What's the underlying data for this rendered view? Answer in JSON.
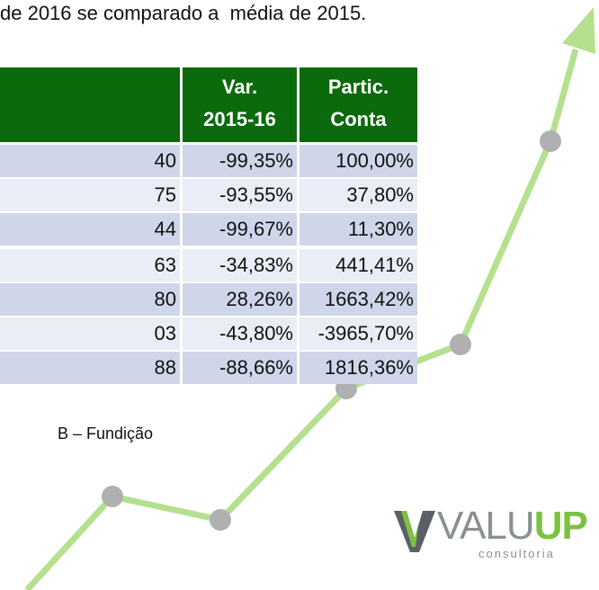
{
  "intro_text": "de 2016 se comparado a  média de 2015.",
  "table": {
    "header": [
      "",
      "Var.\n2015-16",
      "Partic.\nConta"
    ],
    "rows": [
      [
        "40",
        "-99,35%",
        "100,00%"
      ],
      [
        "75",
        "-93,55%",
        "37,80%"
      ],
      [
        "44",
        "-99,67%",
        "11,30%"
      ],
      [
        "63",
        "-34,83%",
        "441,41%"
      ],
      [
        "80",
        "28,26%",
        "1663,42%"
      ],
      [
        "03",
        "-43,80%",
        "-3965,70%"
      ],
      [
        "88",
        "-88,66%",
        "1816,36%"
      ]
    ]
  },
  "source": "B – Fundição",
  "logo": {
    "name_a": "VALU",
    "name_b": "UP",
    "tagline": "consultoria"
  }
}
